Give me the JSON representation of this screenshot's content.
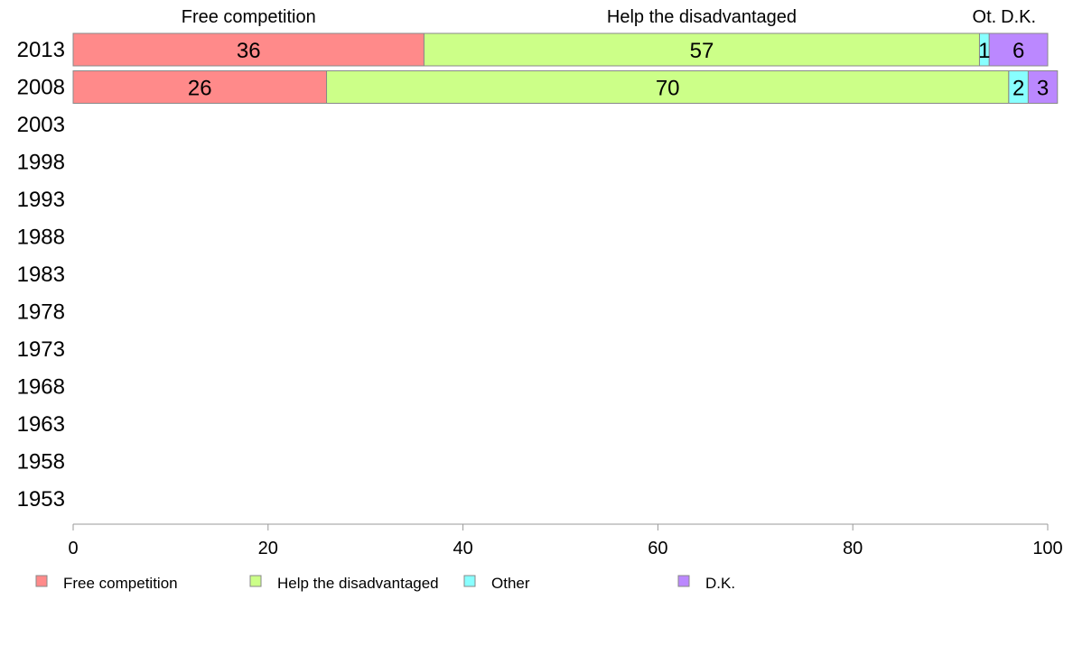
{
  "chart_data": {
    "type": "bar",
    "orientation": "horizontal",
    "stacked": true,
    "categories": [
      "2013",
      "2008",
      "2003",
      "1998",
      "1993",
      "1988",
      "1983",
      "1978",
      "1973",
      "1968",
      "1963",
      "1958",
      "1953"
    ],
    "series": [
      {
        "name": "Free competition",
        "header_label": "Free competition",
        "color": "#ff8a8a",
        "values": [
          36,
          26,
          null,
          null,
          null,
          null,
          null,
          null,
          null,
          null,
          null,
          null,
          null
        ]
      },
      {
        "name": "Help the disadvantaged",
        "header_label": "Help the disadvantaged",
        "color": "#ccff88",
        "values": [
          57,
          70,
          null,
          null,
          null,
          null,
          null,
          null,
          null,
          null,
          null,
          null,
          null
        ]
      },
      {
        "name": "Other",
        "header_label": "Ot.",
        "color": "#88ffff",
        "values": [
          1,
          2,
          null,
          null,
          null,
          null,
          null,
          null,
          null,
          null,
          null,
          null,
          null
        ]
      },
      {
        "name": "D.K.",
        "header_label": "D.K.",
        "color": "#bb88ff",
        "values": [
          6,
          3,
          null,
          null,
          null,
          null,
          null,
          null,
          null,
          null,
          null,
          null,
          null
        ]
      }
    ],
    "xlim": [
      0,
      100
    ],
    "xticks": [
      0,
      20,
      40,
      60,
      80,
      100
    ],
    "title": "",
    "xlabel": "",
    "ylabel": "",
    "grid": false,
    "legend_position": "bottom"
  }
}
